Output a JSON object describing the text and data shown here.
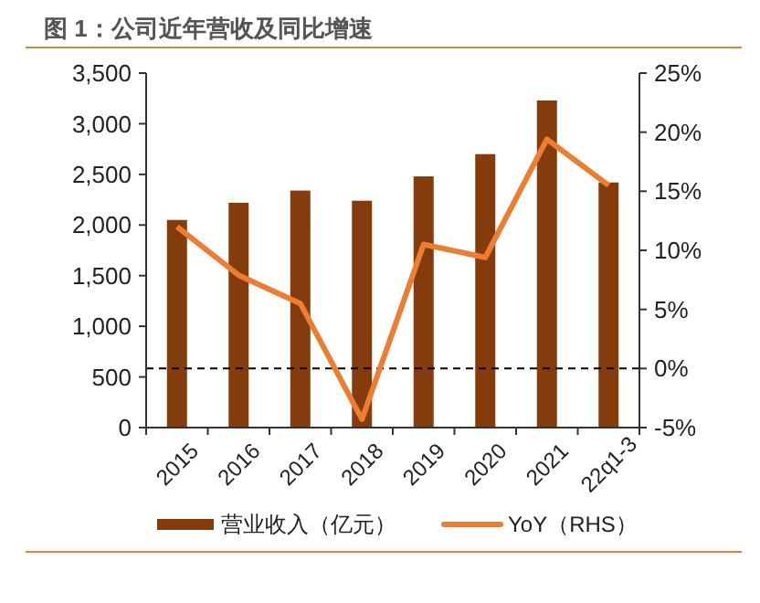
{
  "chart_data": {
    "type": "bar",
    "title": "图 1：公司近年营收及同比增速",
    "categories": [
      "2015",
      "2016",
      "2017",
      "2018",
      "2019",
      "2020",
      "2021",
      "22q1-3"
    ],
    "series": [
      {
        "name": "营业收入（亿元）",
        "color": "#843c0c",
        "values": [
          2050,
          2220,
          2340,
          2240,
          2480,
          2700,
          3230,
          2420
        ]
      },
      {
        "name": "YoY（RHS）",
        "type": "line",
        "axis": "y2",
        "color": "#ed7d31",
        "values": [
          12.0,
          7.9,
          5.5,
          -4.3,
          10.5,
          9.4,
          19.4,
          15.5
        ]
      }
    ],
    "ylim": [
      0,
      3500
    ],
    "yticks": [
      {
        "value": 0,
        "label": "0"
      },
      {
        "value": 500,
        "label": "500"
      },
      {
        "value": 1000,
        "label": "1,000"
      },
      {
        "value": 1500,
        "label": "1,500"
      },
      {
        "value": 2000,
        "label": "2,000"
      },
      {
        "value": 2500,
        "label": "2,500"
      },
      {
        "value": 3000,
        "label": "3,000"
      },
      {
        "value": 3500,
        "label": "3,500"
      }
    ],
    "y2lim": [
      -5,
      25
    ],
    "y2ticks": [
      {
        "value": -5,
        "label": "-5%"
      },
      {
        "value": 0,
        "label": "0%"
      },
      {
        "value": 5,
        "label": "5%"
      },
      {
        "value": 10,
        "label": "10%"
      },
      {
        "value": 15,
        "label": "15%"
      },
      {
        "value": 20,
        "label": "20%"
      },
      {
        "value": 25,
        "label": "25%"
      }
    ],
    "ref_lines": [
      {
        "axis": "y2",
        "value": 0,
        "color": "#000000",
        "line_style": "dashed"
      }
    ],
    "legend": "bottom",
    "grid": false
  }
}
